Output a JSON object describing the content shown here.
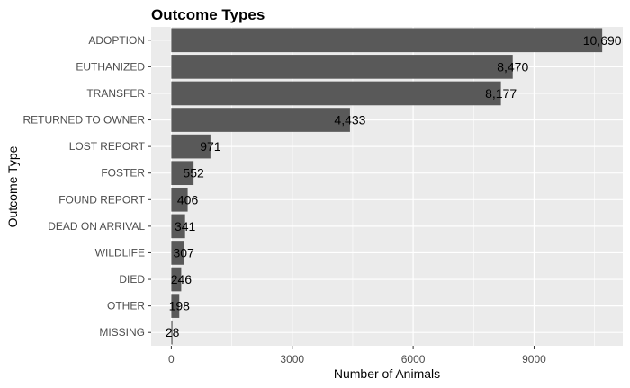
{
  "chart_data": {
    "type": "bar",
    "orientation": "horizontal",
    "title": "Outcome Types",
    "xlabel": "Number of Animals",
    "ylabel": "Outcome Type",
    "categories": [
      "ADOPTION",
      "EUTHANIZED",
      "TRANSFER",
      "RETURNED TO OWNER",
      "LOST REPORT",
      "FOSTER",
      "FOUND REPORT",
      "DEAD ON ARRIVAL",
      "WILDLIFE",
      "DIED",
      "OTHER",
      "MISSING"
    ],
    "values": [
      10690,
      8470,
      8177,
      4433,
      971,
      552,
      406,
      341,
      307,
      246,
      198,
      28
    ],
    "data_labels": [
      "10,690",
      "8,470",
      "8,177",
      "4,433",
      "971",
      "552",
      "406",
      "341",
      "307",
      "246",
      "198",
      "28"
    ],
    "x_ticks": [
      0,
      3000,
      6000,
      9000
    ],
    "x_tick_labels": [
      "0",
      "3000",
      "6000",
      "9000"
    ],
    "xlim": [
      -500,
      11200
    ],
    "grid": true,
    "legend": "none",
    "colors": {
      "bar": "#595959",
      "panel": "#ebebeb",
      "grid_major": "#ffffff"
    }
  }
}
